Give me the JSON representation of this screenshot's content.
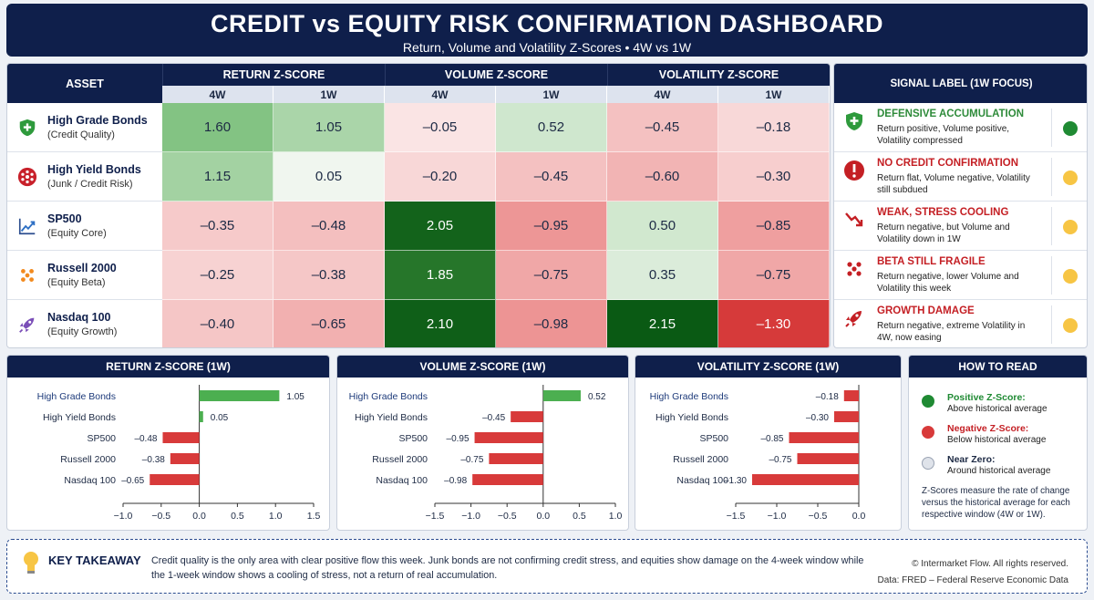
{
  "header": {
    "title": "CREDIT vs EQUITY RISK CONFIRMATION DASHBOARD",
    "subtitle": "Return, Volume and Volatility Z-Scores  •  4W vs 1W"
  },
  "table": {
    "asset_header": "ASSET",
    "groups": [
      "RETURN Z-SCORE",
      "VOLUME Z-SCORE",
      "VOLATILITY Z-SCORE"
    ],
    "windows": [
      "4W",
      "1W",
      "4W",
      "1W",
      "4W",
      "1W"
    ],
    "rows": [
      {
        "name": "High Grade Bonds",
        "sub": "(Credit Quality)",
        "icon": "shield-plus-icon",
        "values": [
          "1.60",
          "1.05",
          "–0.05",
          "0.52",
          "–0.45",
          "–0.18"
        ]
      },
      {
        "name": "High Yield Bonds",
        "sub": "(Junk / Credit Risk)",
        "icon": "burst-icon",
        "values": [
          "1.15",
          "0.05",
          "–0.20",
          "–0.45",
          "–0.60",
          "–0.30"
        ]
      },
      {
        "name": "SP500",
        "sub": "(Equity Core)",
        "icon": "trend-line-icon",
        "values": [
          "–0.35",
          "–0.48",
          "2.05",
          "–0.95",
          "0.50",
          "–0.85"
        ]
      },
      {
        "name": "Russell 2000",
        "sub": "(Equity Beta)",
        "icon": "dots-icon",
        "values": [
          "–0.25",
          "–0.38",
          "1.85",
          "–0.75",
          "0.35",
          "–0.75"
        ]
      },
      {
        "name": "Nasdaq 100",
        "sub": "(Equity Growth)",
        "icon": "rocket-icon",
        "values": [
          "–0.40",
          "–0.65",
          "2.10",
          "–0.98",
          "2.15",
          "–1.30"
        ]
      }
    ]
  },
  "signals": {
    "header": "SIGNAL LABEL (1W FOCUS)",
    "items": [
      {
        "label": "DEFENSIVE ACCUMULATION",
        "desc": "Return positive, Volume positive, Volatility compressed",
        "color": "#2e8b3a",
        "dot": "#1f8a33",
        "icon": "shield-plus-icon"
      },
      {
        "label": "NO CREDIT CONFIRMATION",
        "desc": "Return flat, Volume negative, Volatility still subdued",
        "color": "#c41f24",
        "dot": "#f7c544",
        "icon": "alert-icon"
      },
      {
        "label": "WEAK, STRESS COOLING",
        "desc": "Return negative, but Volume and Volatility down in 1W",
        "color": "#c41f24",
        "dot": "#f7c544",
        "icon": "down-trend-icon"
      },
      {
        "label": "BETA STILL FRAGILE",
        "desc": "Return negative, lower Volume and Volatility this week",
        "color": "#c41f24",
        "dot": "#f7c544",
        "icon": "dots-icon"
      },
      {
        "label": "GROWTH DAMAGE",
        "desc": "Return negative, extreme Volatility in 4W, now easing",
        "color": "#c41f24",
        "dot": "#f7c544",
        "icon": "rocket-icon"
      }
    ]
  },
  "chart_data": [
    {
      "type": "bar",
      "title": "RETURN Z-SCORE (1W)",
      "categories": [
        "High Grade Bonds",
        "High Yield Bonds",
        "SP500",
        "Russell 2000",
        "Nasdaq 100"
      ],
      "values": [
        1.05,
        0.05,
        -0.48,
        -0.38,
        -0.65
      ],
      "labels": [
        "1.05",
        "0.05",
        "–0.48",
        "–0.38",
        "–0.65"
      ],
      "xlim": [
        -1.0,
        1.5
      ],
      "ticks": [
        "−1.0",
        "−0.5",
        "0.0",
        "0.5",
        "1.0",
        "1.5"
      ]
    },
    {
      "type": "bar",
      "title": "VOLUME Z-SCORE (1W)",
      "categories": [
        "High Grade Bonds",
        "High Yield Bonds",
        "SP500",
        "Russell 2000",
        "Nasdaq 100"
      ],
      "values": [
        0.52,
        -0.45,
        -0.95,
        -0.75,
        -0.98
      ],
      "labels": [
        "0.52",
        "–0.45",
        "–0.95",
        "–0.75",
        "–0.98"
      ],
      "xlim": [
        -1.5,
        1.0
      ],
      "ticks": [
        "−1.5",
        "−1.0",
        "−0.5",
        "0.0",
        "0.5",
        "1.0"
      ]
    },
    {
      "type": "bar",
      "title": "VOLATILITY Z-SCORE (1W)",
      "categories": [
        "High Grade Bonds",
        "High Yield Bonds",
        "SP500",
        "Russell 2000",
        "Nasdaq 100"
      ],
      "values": [
        -0.18,
        -0.3,
        -0.85,
        -0.75,
        -1.3
      ],
      "labels": [
        "–0.18",
        "–0.30",
        "–0.85",
        "–0.75",
        "–1.30"
      ],
      "xlim": [
        -1.5,
        0.0
      ],
      "ticks": [
        "−1.5",
        "−1.0",
        "−0.5",
        "0.0"
      ]
    }
  ],
  "colors": {
    "positive": "#4caf50",
    "negative": "#d83a3a",
    "navy": "#0f1f4b"
  },
  "howto": {
    "header": "HOW TO READ",
    "items": [
      {
        "title": "Positive Z-Score:",
        "desc": "Above historical average",
        "color": "#1f8a33",
        "titleColor": "#1f8a33"
      },
      {
        "title": "Negative Z-Score:",
        "desc": "Below historical average",
        "color": "#d83a3a",
        "titleColor": "#c41f24"
      },
      {
        "title": "Near Zero:",
        "desc": "Around historical average",
        "color": "#dfe3ea",
        "titleColor": "#1d2a44"
      }
    ],
    "note": "Z-Scores measure the rate of change versus the historical average for each respective window (4W or 1W)."
  },
  "takeaway": {
    "title": "KEY TAKEAWAY",
    "text": "Credit quality is the only area with clear positive flow this week. Junk bonds are not confirming credit stress, and equities show damage on the 4-week window while the 1-week window shows a cooling of stress, not a return of real accumulation.",
    "copyright": "© Intermarket Flow. All rights reserved.",
    "source": "Data: FRED – Federal Reserve Economic Data"
  }
}
